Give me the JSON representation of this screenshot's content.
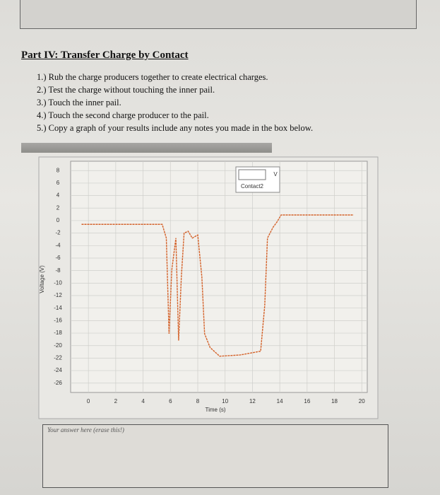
{
  "header": {
    "title": "Part IV: Transfer Charge by Contact"
  },
  "steps": [
    "1.) Rub the charge producers together to create electrical charges.",
    "2.) Test the charge without touching the inner pail.",
    "3.) Touch the inner pail.",
    "4.) Touch the second charge producer to the pail.",
    "5.) Copy a graph of your results include any notes you made in the box below."
  ],
  "chart_data": {
    "type": "line",
    "xlabel": "Time (s)",
    "ylabel": "Voltage (V)",
    "xlim": [
      -1.3,
      20.4
    ],
    "ylim": [
      -27.5,
      9.5
    ],
    "xticks": [
      0,
      2,
      4,
      6,
      8,
      10,
      12,
      14,
      16,
      18,
      20
    ],
    "yticks": [
      8,
      6,
      4,
      2,
      0,
      -2,
      -4,
      -6,
      -8,
      -10,
      -12,
      -14,
      -16,
      -18,
      -20,
      -22,
      -24,
      -26
    ],
    "grid": true,
    "legend_units": "V",
    "series": [
      {
        "name": "Contact2",
        "color": "#d4622a",
        "x": [
          -0.5,
          5.4,
          5.7,
          5.9,
          6.1,
          6.4,
          6.6,
          6.8,
          7.0,
          7.3,
          7.6,
          8.0,
          8.3,
          8.5,
          8.9,
          9.6,
          11.1,
          12.6,
          12.9,
          13.1,
          13.5,
          13.8,
          14.1,
          19.4
        ],
        "values": [
          -0.6,
          -0.6,
          -2.8,
          -18.1,
          -7.9,
          -2.8,
          -19.2,
          -9,
          -2,
          -1.7,
          -2.8,
          -2.3,
          -9,
          -18.1,
          -20.3,
          -21.7,
          -21.5,
          -20.9,
          -13.6,
          -2.8,
          -1.1,
          -0.2,
          0.9,
          0.9
        ]
      }
    ]
  },
  "answer_box": {
    "placeholder": "Your answer here (erase this!)"
  }
}
